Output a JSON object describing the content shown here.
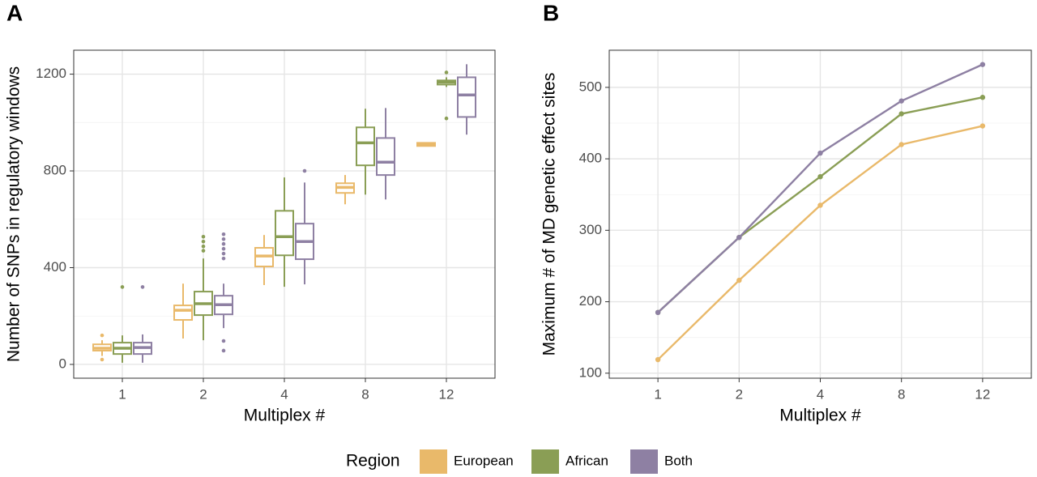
{
  "chart_data": [
    {
      "type": "box",
      "panel_label": "A",
      "x_label": "Multiplex #",
      "y_label": "Number of SNPs in regulatory windows",
      "legend_title": "Region",
      "categories": [
        "1",
        "2",
        "4",
        "8",
        "12"
      ],
      "ylim": [
        -57,
        1299
      ],
      "yticks": [
        0,
        400,
        800,
        1200
      ],
      "minor_yticks": [
        200,
        600,
        1000
      ],
      "grid": true,
      "series": [
        {
          "name": "European",
          "color": "#E9B96A",
          "boxes": [
            {
              "low": 35,
              "q1": 57,
              "median": 67,
              "q3": 83,
              "high": 100,
              "outliers": [
                120,
                20
              ]
            },
            {
              "low": 107,
              "q1": 184,
              "median": 224,
              "q3": 244,
              "high": 334,
              "outliers": []
            },
            {
              "low": 328,
              "q1": 405,
              "median": 448,
              "q3": 482,
              "high": 535,
              "outliers": []
            },
            {
              "low": 662,
              "q1": 709,
              "median": 732,
              "q3": 749,
              "high": 783,
              "outliers": []
            },
            {
              "low": 903,
              "q1": 903,
              "median": 910,
              "q3": 916,
              "high": 916,
              "outliers": []
            }
          ]
        },
        {
          "name": "African",
          "color": "#8A9E55",
          "boxes": [
            {
              "low": 7,
              "q1": 43,
              "median": 67,
              "q3": 90,
              "high": 120,
              "outliers": [
                320
              ]
            },
            {
              "low": 100,
              "q1": 204,
              "median": 251,
              "q3": 301,
              "high": 438,
              "outliers": [
                528,
                508,
                488,
                470
              ]
            },
            {
              "low": 321,
              "q1": 451,
              "median": 528,
              "q3": 635,
              "high": 773,
              "outliers": []
            },
            {
              "low": 702,
              "q1": 823,
              "median": 916,
              "q3": 980,
              "high": 1057,
              "outliers": []
            },
            {
              "low": 1147,
              "q1": 1157,
              "median": 1167,
              "q3": 1174,
              "high": 1187,
              "outliers": [
                1207,
                1017
              ]
            }
          ]
        },
        {
          "name": "Both",
          "color": "#8E80A3",
          "boxes": [
            {
              "low": 7,
              "q1": 43,
              "median": 70,
              "q3": 90,
              "high": 124,
              "outliers": [
                320
              ]
            },
            {
              "low": 150,
              "q1": 207,
              "median": 247,
              "q3": 284,
              "high": 334,
              "outliers": [
                538,
                518,
                498,
                478,
                458,
                438,
                97,
                57
              ]
            },
            {
              "low": 331,
              "q1": 435,
              "median": 508,
              "q3": 582,
              "high": 752,
              "outliers": [
                800
              ]
            },
            {
              "low": 682,
              "q1": 783,
              "median": 836,
              "q3": 936,
              "high": 1060,
              "outliers": []
            },
            {
              "low": 950,
              "q1": 1023,
              "median": 1114,
              "q3": 1187,
              "high": 1241,
              "outliers": []
            }
          ]
        }
      ]
    },
    {
      "type": "line",
      "panel_label": "B",
      "x_label": "Multiplex #",
      "y_label": "Maximum # of MD genetic effect sites",
      "categories": [
        "1",
        "2",
        "4",
        "8",
        "12"
      ],
      "ylim": [
        93,
        552
      ],
      "yticks": [
        100,
        200,
        300,
        400,
        500
      ],
      "minor_yticks": [
        150,
        250,
        350,
        450,
        550
      ],
      "grid": true,
      "series": [
        {
          "color": "#E9B96A",
          "values": [
            119,
            230,
            335,
            420,
            446
          ]
        },
        {
          "color": "#8A9E55",
          "values": [
            185,
            290,
            375,
            463,
            486
          ]
        },
        {
          "color": "#8E80A3",
          "values": [
            185,
            290,
            408,
            481,
            532
          ]
        }
      ]
    }
  ]
}
